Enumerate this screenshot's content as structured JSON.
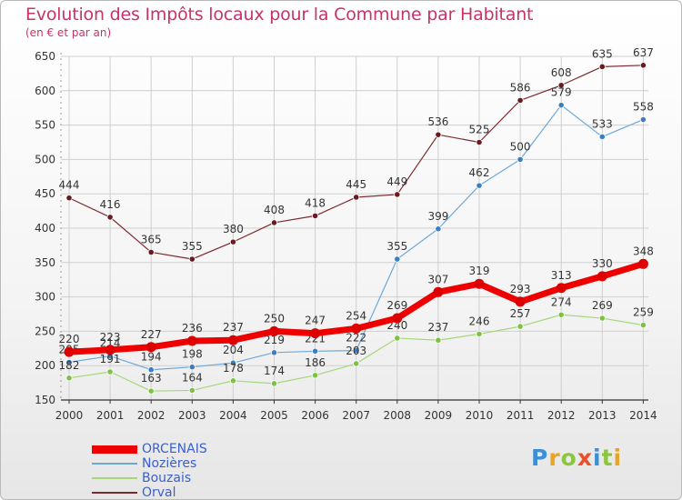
{
  "header": {
    "title": "Evolution des Impôts locaux pour la Commune par Habitant",
    "subtitle": "(en € et par an)"
  },
  "brand": {
    "text": "Proxiti",
    "letter_colors": [
      "#3a8fd6",
      "#e8a423",
      "#8cc63f",
      "#e8512a",
      "#3a8fd6",
      "#8cc63f",
      "#e8a423"
    ]
  },
  "colors": {
    "title": "#c8326a",
    "axis_labels": "#333333",
    "grid": "#cfcfcf",
    "legend_text": "#3a5fcd"
  },
  "chart_data": {
    "type": "line",
    "x": [
      "2000",
      "2001",
      "2002",
      "2003",
      "2004",
      "2005",
      "2006",
      "2007",
      "2008",
      "2009",
      "2010",
      "2011",
      "2012",
      "2013",
      "2014"
    ],
    "ylim": [
      150,
      650
    ],
    "yticks": [
      150,
      200,
      250,
      300,
      350,
      400,
      450,
      500,
      550,
      600,
      650
    ],
    "grid": true,
    "legend_position": "bottom-left",
    "series": [
      {
        "name": "Orval",
        "color": "#7b2a2f",
        "marker": "#6a1b22",
        "width": 1.2,
        "values": [
          444,
          416,
          365,
          355,
          380,
          408,
          418,
          445,
          449,
          536,
          525,
          586,
          608,
          635,
          637
        ]
      },
      {
        "name": "Nozières",
        "color": "#6ea8d8",
        "marker": "#3b7fc2",
        "width": 1.2,
        "values": [
          205,
          214,
          194,
          198,
          204,
          219,
          221,
          222,
          355,
          399,
          462,
          500,
          579,
          533,
          558
        ]
      },
      {
        "name": "Bouzais",
        "color": "#a6d67a",
        "marker": "#7dc242",
        "width": 1.2,
        "values": [
          182,
          191,
          163,
          164,
          178,
          174,
          186,
          203,
          240,
          237,
          246,
          257,
          274,
          269,
          259
        ]
      },
      {
        "name": "ORCENAIS",
        "color": "#ee0000",
        "marker": "#dd0000",
        "width": 7,
        "values": [
          220,
          223,
          227,
          236,
          237,
          250,
          247,
          254,
          269,
          307,
          319,
          293,
          313,
          330,
          348
        ]
      }
    ],
    "legend_order": [
      "ORCENAIS",
      "Nozières",
      "Bouzais",
      "Orval"
    ]
  }
}
